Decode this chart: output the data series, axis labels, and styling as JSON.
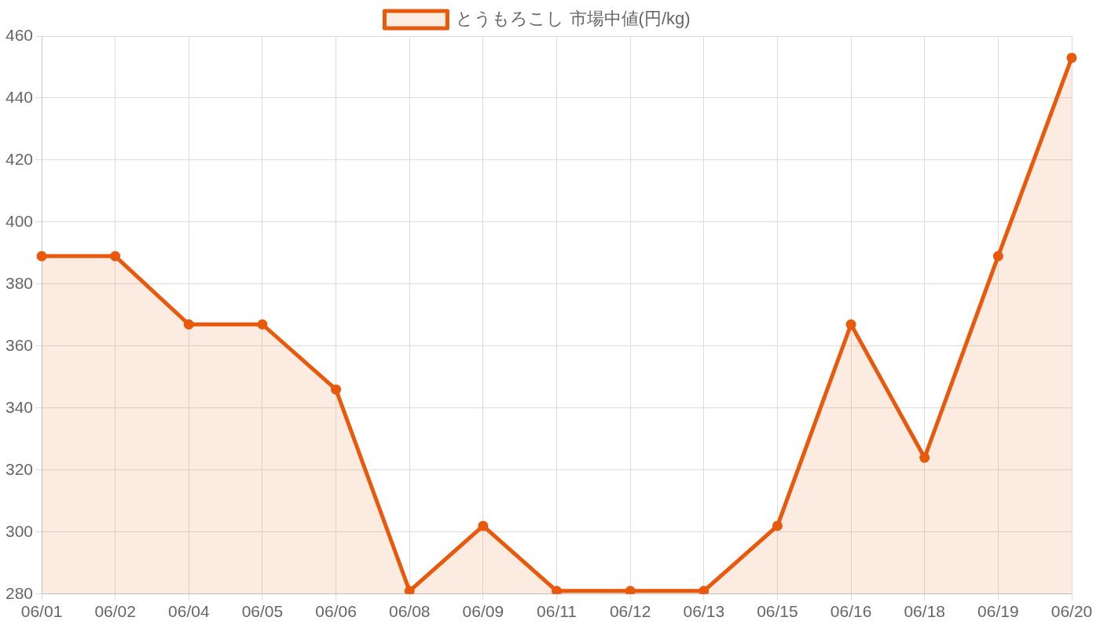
{
  "chart_data": {
    "type": "area",
    "categories": [
      "06/01",
      "06/02",
      "06/04",
      "06/05",
      "06/06",
      "06/08",
      "06/09",
      "06/11",
      "06/12",
      "06/13",
      "06/15",
      "06/16",
      "06/18",
      "06/19",
      "06/20"
    ],
    "series": [
      {
        "name": "とうもろこし 市場中値(円/kg)",
        "color": "#e8590c",
        "values": [
          389,
          389,
          367,
          367,
          346,
          281,
          302,
          281,
          281,
          281,
          302,
          367,
          324,
          389,
          453
        ]
      }
    ],
    "ylim": [
      280,
      460
    ],
    "yticks": [
      280,
      300,
      320,
      340,
      360,
      380,
      400,
      420,
      440,
      460
    ],
    "grid": true,
    "legend": "top",
    "marker": "circle",
    "line_style": "solid"
  }
}
